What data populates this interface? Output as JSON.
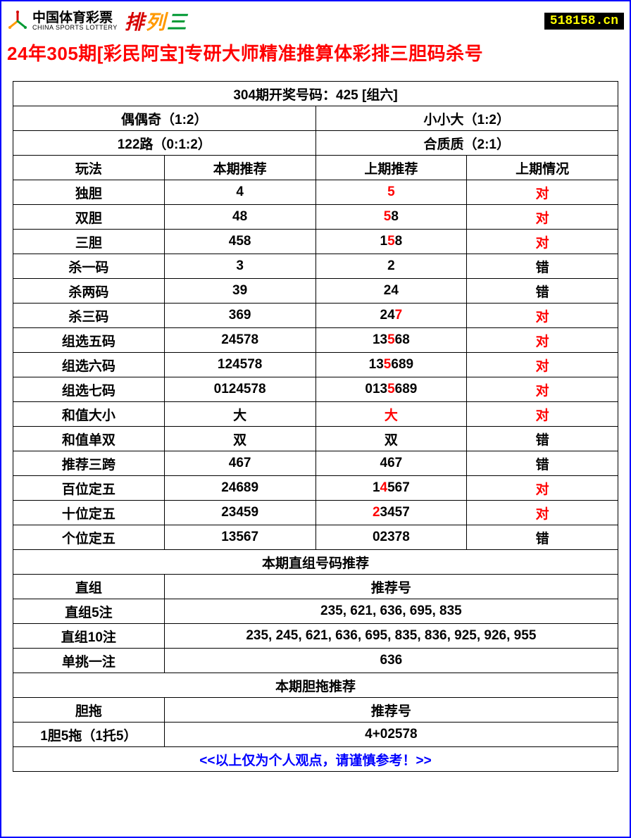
{
  "header": {
    "lottery_cn": "中国体育彩票",
    "lottery_en": "CHINA SPORTS LOTTERY",
    "pls": [
      "排",
      "列",
      "三"
    ],
    "badge": "518158.cn"
  },
  "title": "24年305期[彩民阿宝]专研大师精准推算体彩排三胆码杀号",
  "summary": {
    "draw_line": "304期开奖号码：425 [组六]",
    "pair_l": "偶偶奇（1:2）",
    "pair_r": "小小大（1:2）",
    "route_l": "122路（0:1:2）",
    "route_r": "合质质（2:1）"
  },
  "cols": {
    "c1": "玩法",
    "c2": "本期推荐",
    "c3": "上期推荐",
    "c4": "上期情况"
  },
  "rows": [
    {
      "name": "独胆",
      "cur": "4",
      "prev": [
        [
          "5",
          "r"
        ]
      ],
      "res": "对",
      "res_color": "r"
    },
    {
      "name": "双胆",
      "cur": "48",
      "prev": [
        [
          "5",
          "r"
        ],
        [
          "8",
          "b"
        ]
      ],
      "res": "对",
      "res_color": "r"
    },
    {
      "name": "三胆",
      "cur": "458",
      "prev": [
        [
          "1",
          "b"
        ],
        [
          "5",
          "r"
        ],
        [
          "8",
          "b"
        ]
      ],
      "res": "对",
      "res_color": "r"
    },
    {
      "name": "杀一码",
      "cur": "3",
      "prev": [
        [
          "2",
          "b"
        ]
      ],
      "res": "错",
      "res_color": "b"
    },
    {
      "name": "杀两码",
      "cur": "39",
      "prev": [
        [
          "24",
          "b"
        ]
      ],
      "res": "错",
      "res_color": "b"
    },
    {
      "name": "杀三码",
      "cur": "369",
      "prev": [
        [
          "24",
          "b"
        ],
        [
          "7",
          "r"
        ]
      ],
      "res": "对",
      "res_color": "r"
    },
    {
      "name": "组选五码",
      "cur": "24578",
      "prev": [
        [
          "13",
          "b"
        ],
        [
          "5",
          "r"
        ],
        [
          "68",
          "b"
        ]
      ],
      "res": "对",
      "res_color": "r"
    },
    {
      "name": "组选六码",
      "cur": "124578",
      "prev": [
        [
          "13",
          "b"
        ],
        [
          "5",
          "r"
        ],
        [
          "689",
          "b"
        ]
      ],
      "res": "对",
      "res_color": "r"
    },
    {
      "name": "组选七码",
      "cur": "0124578",
      "prev": [
        [
          "013",
          "b"
        ],
        [
          "5",
          "r"
        ],
        [
          "689",
          "b"
        ]
      ],
      "res": "对",
      "res_color": "r"
    },
    {
      "name": "和值大小",
      "cur": "大",
      "prev": [
        [
          "大",
          "r"
        ]
      ],
      "res": "对",
      "res_color": "r"
    },
    {
      "name": "和值单双",
      "cur": "双",
      "prev": [
        [
          "双",
          "b"
        ]
      ],
      "res": "错",
      "res_color": "b"
    },
    {
      "name": "推荐三跨",
      "cur": "467",
      "prev": [
        [
          "467",
          "b"
        ]
      ],
      "res": "错",
      "res_color": "b"
    },
    {
      "name": "百位定五",
      "cur": "24689",
      "prev": [
        [
          "1",
          "b"
        ],
        [
          "4",
          "r"
        ],
        [
          "567",
          "b"
        ]
      ],
      "res": "对",
      "res_color": "r"
    },
    {
      "name": "十位定五",
      "cur": "23459",
      "prev": [
        [
          "2",
          "r"
        ],
        [
          "3457",
          "b"
        ]
      ],
      "res": "对",
      "res_color": "r"
    },
    {
      "name": "个位定五",
      "cur": "13567",
      "prev": [
        [
          "02378",
          "b"
        ]
      ],
      "res": "错",
      "res_color": "b"
    }
  ],
  "section_direct_title": "本期直组号码推荐",
  "direct_header": {
    "l": "直组",
    "r": "推荐号"
  },
  "direct_rows": {
    "r5": {
      "l": "直组5注",
      "r": "235, 621, 636, 695, 835"
    },
    "r10": {
      "l": "直组10注",
      "r": "235, 245, 621, 636, 695, 835, 836, 925, 926, 955"
    },
    "pick": {
      "l": "单挑一注",
      "r": "636"
    }
  },
  "section_dan_title": "本期胆拖推荐",
  "dan_header": {
    "l": "胆拖",
    "r": "推荐号"
  },
  "dan_row": {
    "l": "1胆5拖（1托5）",
    "r": "4+02578"
  },
  "footer": "<<以上仅为个人观点，请谨慎参考！>>",
  "colors": {
    "red": "#ff0000",
    "blue": "#0000ff",
    "black": "#000000",
    "badge_bg": "#000000",
    "badge_fg": "#ffff00"
  }
}
